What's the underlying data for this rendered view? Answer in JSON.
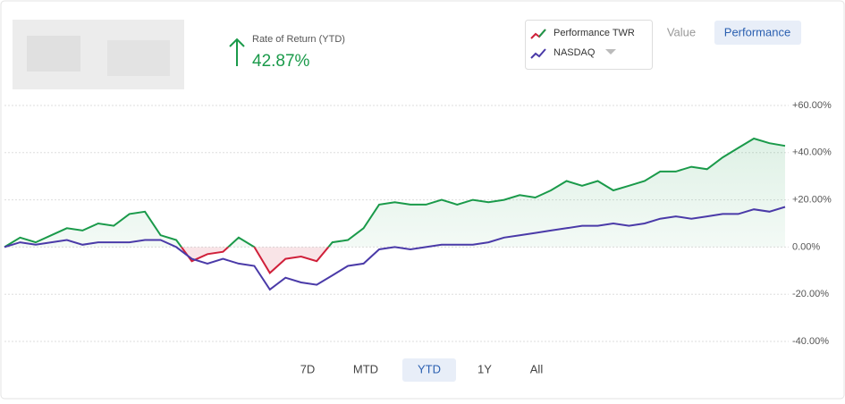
{
  "header": {
    "return_label": "Rate of Return (YTD)",
    "return_value": "42.87%"
  },
  "view_buttons": [
    "Value",
    "Performance"
  ],
  "range_buttons": [
    "7D",
    "MTD",
    "YTD",
    "1Y",
    "All"
  ],
  "chart_data": {
    "type": "line",
    "series": [
      {
        "name": "Performance TWR",
        "color": "#1a9a4a",
        "negative_color": "#d0203a",
        "values": [
          0,
          4,
          2,
          5,
          8,
          7,
          10,
          9,
          14,
          15,
          5,
          3,
          -6,
          -3,
          -2,
          4,
          0,
          -11,
          -5,
          -4,
          -6,
          2,
          3,
          8,
          18,
          19,
          18,
          18,
          20,
          18,
          20,
          19,
          20,
          22,
          21,
          24,
          28,
          26,
          28,
          24,
          26,
          28,
          32,
          32,
          34,
          33,
          38,
          42,
          46,
          44,
          42.87
        ]
      },
      {
        "name": "NASDAQ",
        "color": "#4a3aa8",
        "values": [
          0,
          2,
          1,
          2,
          3,
          1,
          2,
          2,
          2,
          3,
          3,
          0,
          -5,
          -7,
          -5,
          -7,
          -8,
          -18,
          -13,
          -15,
          -16,
          -12,
          -8,
          -7,
          -1,
          0,
          -1,
          0,
          1,
          1,
          1,
          2,
          4,
          5,
          6,
          7,
          8,
          9,
          9,
          10,
          9,
          10,
          12,
          13,
          12,
          13,
          14,
          14,
          16,
          15,
          17
        ]
      }
    ],
    "ylim": [
      -40,
      60
    ],
    "yticks": [
      {
        "value": -40,
        "label": "-40.00%"
      },
      {
        "value": -20,
        "label": "-20.00%"
      },
      {
        "value": 0,
        "label": "0.00%"
      },
      {
        "value": 20,
        "label": "+20.00%"
      },
      {
        "value": 40,
        "label": "+40.00%"
      },
      {
        "value": 60,
        "label": "+60.00%"
      }
    ],
    "grid": true
  }
}
